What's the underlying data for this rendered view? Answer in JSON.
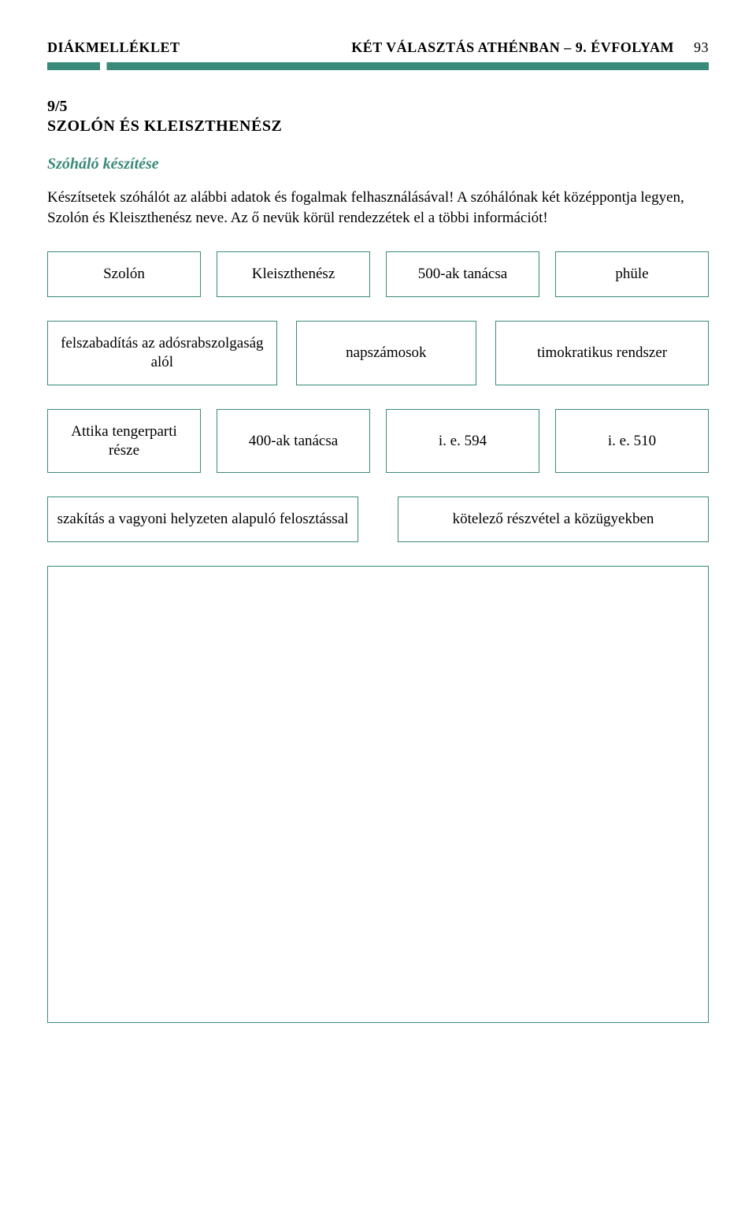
{
  "header": {
    "left": "DIÁKMELLÉKLET",
    "right_title": "KÉT VÁLASZTÁS ATHÉNBAN – 9. ÉVFOLYAM",
    "page_number": "93"
  },
  "colors": {
    "accent": "#3a8a7a",
    "text": "#000000",
    "background": "#ffffff"
  },
  "section": {
    "number": "9/5",
    "title": "SZOLÓN ÉS KLEISZTHENÉSZ",
    "subtitle": "Szóháló készítése",
    "body": "Készítsetek szóhálót az alábbi adatok és fogalmak felhasználásával! A szóhálónak két középpontja legyen, Szolón és Kleiszthenész neve. Az ő nevük körül rendezzétek el a többi információt!"
  },
  "rows": [
    [
      "Szolón",
      "Kleiszthenész",
      "500-ak tanácsa",
      "phüle"
    ],
    [
      "felszabadítás az adósrabszolgaság alól",
      "napszámosok",
      "timokratikus rendszer"
    ],
    [
      "Attika tengerparti része",
      "400-ak tanácsa",
      "i. e. 594",
      "i. e. 510"
    ],
    [
      "szakítás a vagyoni helyzeten alapuló felosztással",
      "kötelező részvétel a közügyekben"
    ]
  ]
}
